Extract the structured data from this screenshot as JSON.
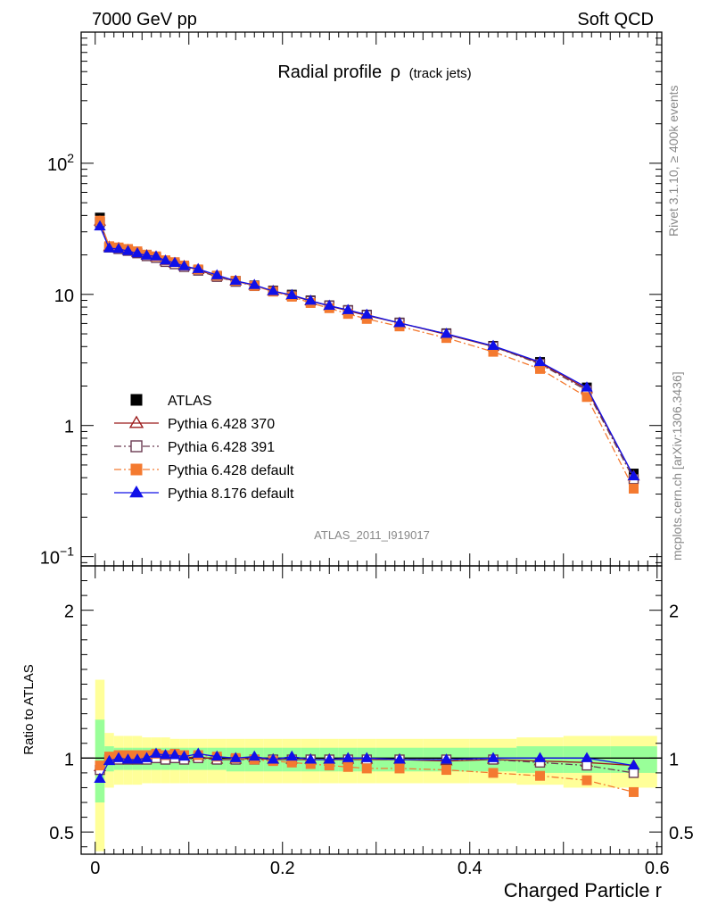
{
  "header": {
    "left": "7000 GeV pp",
    "right": "Soft QCD"
  },
  "side": {
    "rivet": "Rivet 3.1.10, ≥ 400k events",
    "mcplots": "mcplots.cern.ch [arXiv:1306.3436]"
  },
  "analysis_id": "ATLAS_2011_I919017",
  "chart_data": [
    {
      "type": "scatter",
      "panel": "main",
      "title": "Radial profile",
      "title_symbol": "ρ",
      "title_suffix": "(track jets)",
      "xlabel": "Charged Particle r",
      "ylabel": "",
      "xlim": [
        -0.015,
        0.605
      ],
      "ylim": [
        0.085,
        1000
      ],
      "yscale": "log",
      "y_ticks": [
        {
          "value": 0.1,
          "base": "10",
          "exp": "−1"
        },
        {
          "value": 1,
          "base": "1",
          "exp": ""
        },
        {
          "value": 10,
          "base": "10",
          "exp": ""
        },
        {
          "value": 100,
          "base": "10",
          "exp": "2"
        }
      ],
      "legend_position": "lower-left",
      "x": [
        0.005,
        0.015,
        0.025,
        0.035,
        0.045,
        0.055,
        0.065,
        0.075,
        0.085,
        0.095,
        0.11,
        0.13,
        0.15,
        0.17,
        0.19,
        0.21,
        0.23,
        0.25,
        0.27,
        0.29,
        0.325,
        0.375,
        0.425,
        0.475,
        0.525,
        0.575
      ],
      "series": [
        {
          "name": "ATLAS",
          "color": "#000000",
          "marker": "square-filled",
          "line": "none",
          "values": [
            38.5,
            23.0,
            22.3,
            21.7,
            20.8,
            19.8,
            19.0,
            17.8,
            17.0,
            16.3,
            15.2,
            13.8,
            12.7,
            11.7,
            10.7,
            9.95,
            9.0,
            8.25,
            7.6,
            7.0,
            6.1,
            5.05,
            4.05,
            3.05,
            1.95,
            0.43
          ]
        },
        {
          "name": "Pythia 6.428 370",
          "color": "#9b1b1b",
          "marker": "triangle-open",
          "line": "solid",
          "values": [
            36.0,
            23.0,
            22.5,
            21.8,
            20.8,
            19.8,
            19.2,
            17.9,
            17.2,
            16.4,
            15.4,
            13.7,
            12.6,
            11.7,
            10.6,
            9.8,
            8.9,
            8.15,
            7.5,
            6.9,
            6.05,
            4.95,
            4.0,
            3.0,
            1.9,
            0.41
          ]
        },
        {
          "name": "Pythia 6.428 391",
          "color": "#6b3b52",
          "marker": "square-open",
          "line": "dashdot",
          "values": [
            35.5,
            22.8,
            22.2,
            21.5,
            20.6,
            19.6,
            19.0,
            17.7,
            17.0,
            16.2,
            15.2,
            13.6,
            12.5,
            11.6,
            10.6,
            9.8,
            8.9,
            8.2,
            7.55,
            6.95,
            6.05,
            5.0,
            4.0,
            2.95,
            1.85,
            0.39
          ]
        },
        {
          "name": "Pythia 6.428 default",
          "color": "#f47a30",
          "marker": "square-filled",
          "line": "dashdot",
          "values": [
            36.5,
            23.3,
            22.8,
            22.2,
            21.3,
            20.1,
            19.5,
            18.2,
            17.6,
            16.6,
            15.5,
            13.9,
            12.7,
            11.6,
            10.5,
            9.6,
            8.6,
            7.85,
            7.1,
            6.5,
            5.7,
            4.65,
            3.65,
            2.7,
            1.65,
            0.33
          ]
        },
        {
          "name": "Pythia 8.176 default",
          "color": "#1010e8",
          "marker": "triangle-filled",
          "line": "solid",
          "values": [
            33.0,
            22.5,
            22.2,
            21.4,
            20.6,
            19.8,
            19.5,
            18.1,
            17.4,
            16.4,
            15.6,
            14.0,
            12.7,
            11.8,
            10.6,
            9.9,
            8.95,
            8.2,
            7.6,
            7.0,
            6.05,
            5.0,
            4.05,
            3.05,
            1.95,
            0.41
          ]
        }
      ]
    },
    {
      "type": "scatter",
      "panel": "ratio",
      "xlabel": "Charged Particle r",
      "ylabel": "Ratio to ATLAS",
      "xlim": [
        -0.015,
        0.605
      ],
      "ylim": [
        0.35,
        2.3
      ],
      "x_ticks": [
        {
          "value": 0,
          "label": "0"
        },
        {
          "value": 0.2,
          "label": "0.2"
        },
        {
          "value": 0.4,
          "label": "0.4"
        },
        {
          "value": 0.6,
          "label": "0.6"
        }
      ],
      "y_ticks": [
        {
          "value": 0.5,
          "label": "0.5"
        },
        {
          "value": 1,
          "label": "1"
        },
        {
          "value": 2,
          "label": "2"
        }
      ],
      "reference_line": 1,
      "x": [
        0.005,
        0.015,
        0.025,
        0.035,
        0.045,
        0.055,
        0.065,
        0.075,
        0.085,
        0.095,
        0.11,
        0.13,
        0.15,
        0.17,
        0.19,
        0.21,
        0.23,
        0.25,
        0.27,
        0.29,
        0.325,
        0.375,
        0.425,
        0.475,
        0.525,
        0.575
      ],
      "bands": [
        {
          "color": "#ffff99",
          "bins": [
            [
              0,
              0.01
            ],
            [
              0.01,
              0.02
            ],
            [
              0.02,
              0.03
            ],
            [
              0.03,
              0.04
            ],
            [
              0.04,
              0.05
            ],
            [
              0.05,
              0.06
            ],
            [
              0.06,
              0.07
            ],
            [
              0.07,
              0.08
            ],
            [
              0.08,
              0.09
            ],
            [
              0.09,
              0.1
            ],
            [
              0.1,
              0.12
            ],
            [
              0.12,
              0.14
            ],
            [
              0.14,
              0.16
            ],
            [
              0.16,
              0.18
            ],
            [
              0.18,
              0.2
            ],
            [
              0.2,
              0.22
            ],
            [
              0.22,
              0.24
            ],
            [
              0.24,
              0.26
            ],
            [
              0.26,
              0.28
            ],
            [
              0.28,
              0.3
            ],
            [
              0.3,
              0.35
            ],
            [
              0.35,
              0.4
            ],
            [
              0.4,
              0.45
            ],
            [
              0.45,
              0.5
            ],
            [
              0.5,
              0.55
            ],
            [
              0.55,
              0.6
            ]
          ],
          "low": [
            0.37,
            0.8,
            0.82,
            0.82,
            0.82,
            0.83,
            0.83,
            0.83,
            0.83,
            0.83,
            0.83,
            0.83,
            0.83,
            0.83,
            0.83,
            0.83,
            0.83,
            0.83,
            0.83,
            0.83,
            0.83,
            0.83,
            0.83,
            0.82,
            0.8,
            0.8
          ],
          "high": [
            1.53,
            1.17,
            1.15,
            1.15,
            1.15,
            1.14,
            1.14,
            1.14,
            1.13,
            1.13,
            1.13,
            1.13,
            1.13,
            1.13,
            1.13,
            1.13,
            1.13,
            1.13,
            1.13,
            1.13,
            1.13,
            1.13,
            1.13,
            1.14,
            1.15,
            1.15
          ]
        },
        {
          "color": "#99ff99",
          "bins": [
            [
              0,
              0.01
            ],
            [
              0.01,
              0.02
            ],
            [
              0.02,
              0.03
            ],
            [
              0.03,
              0.04
            ],
            [
              0.04,
              0.05
            ],
            [
              0.05,
              0.06
            ],
            [
              0.06,
              0.07
            ],
            [
              0.07,
              0.08
            ],
            [
              0.08,
              0.09
            ],
            [
              0.09,
              0.1
            ],
            [
              0.1,
              0.12
            ],
            [
              0.12,
              0.14
            ],
            [
              0.14,
              0.16
            ],
            [
              0.16,
              0.18
            ],
            [
              0.18,
              0.2
            ],
            [
              0.2,
              0.22
            ],
            [
              0.22,
              0.24
            ],
            [
              0.24,
              0.26
            ],
            [
              0.26,
              0.28
            ],
            [
              0.28,
              0.3
            ],
            [
              0.3,
              0.35
            ],
            [
              0.35,
              0.4
            ],
            [
              0.4,
              0.45
            ],
            [
              0.45,
              0.5
            ],
            [
              0.5,
              0.55
            ],
            [
              0.55,
              0.6
            ]
          ],
          "low": [
            0.7,
            0.91,
            0.92,
            0.92,
            0.92,
            0.92,
            0.92,
            0.92,
            0.92,
            0.92,
            0.92,
            0.92,
            0.91,
            0.91,
            0.91,
            0.91,
            0.91,
            0.91,
            0.91,
            0.91,
            0.91,
            0.91,
            0.91,
            0.9,
            0.9,
            0.9
          ],
          "high": [
            1.26,
            1.08,
            1.07,
            1.07,
            1.07,
            1.07,
            1.07,
            1.07,
            1.07,
            1.07,
            1.07,
            1.07,
            1.07,
            1.07,
            1.07,
            1.07,
            1.07,
            1.07,
            1.07,
            1.07,
            1.07,
            1.07,
            1.07,
            1.08,
            1.08,
            1.08
          ]
        }
      ],
      "series": [
        {
          "name": "Pythia 6.428 370",
          "color": "#9b1b1b",
          "marker": "triangle-open",
          "line": "solid",
          "values": [
            0.94,
            1.0,
            1.01,
            1.0,
            1.0,
            1.0,
            1.01,
            1.01,
            1.01,
            1.0,
            1.01,
            0.99,
            0.99,
            1.0,
            0.99,
            0.99,
            0.99,
            0.99,
            0.99,
            0.99,
            0.99,
            0.98,
            0.99,
            0.98,
            0.97,
            0.95
          ]
        },
        {
          "name": "Pythia 6.428 391",
          "color": "#6b3b52",
          "marker": "square-open",
          "line": "dashdot",
          "values": [
            0.92,
            0.99,
            0.99,
            0.99,
            0.99,
            0.99,
            1.0,
            0.99,
            1.0,
            0.99,
            1.0,
            0.99,
            0.99,
            0.99,
            0.99,
            0.99,
            0.99,
            0.99,
            0.99,
            0.99,
            0.99,
            0.99,
            0.99,
            0.97,
            0.95,
            0.9
          ]
        },
        {
          "name": "Pythia 6.428 default",
          "color": "#f47a30",
          "marker": "square-filled",
          "line": "dashdot",
          "values": [
            0.95,
            1.01,
            1.02,
            1.02,
            1.02,
            1.02,
            1.03,
            1.02,
            1.03,
            1.02,
            1.02,
            1.01,
            1.0,
            0.99,
            0.98,
            0.97,
            0.96,
            0.95,
            0.94,
            0.93,
            0.93,
            0.92,
            0.9,
            0.88,
            0.85,
            0.77
          ]
        },
        {
          "name": "Pythia 8.176 default",
          "color": "#1010e8",
          "marker": "triangle-filled",
          "line": "solid",
          "values": [
            0.86,
            0.98,
            1.0,
            0.99,
            0.99,
            1.0,
            1.03,
            1.02,
            1.02,
            1.01,
            1.03,
            1.01,
            1.0,
            1.01,
            0.99,
            1.01,
            0.99,
            0.99,
            1.0,
            1.0,
            0.99,
            0.99,
            1.0,
            1.0,
            1.0,
            0.95
          ]
        }
      ]
    }
  ]
}
